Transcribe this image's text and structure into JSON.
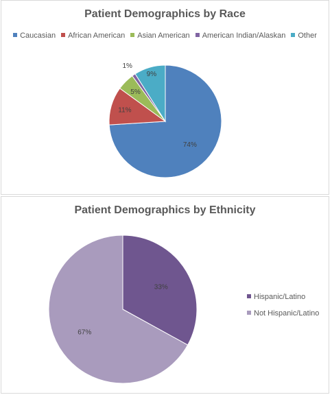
{
  "chart_data": [
    {
      "type": "pie",
      "title": "Patient Demographics by Race",
      "categories": [
        "Caucasian",
        "African American",
        "Asian American",
        "American Indian/Alaskan",
        "Other"
      ],
      "values": [
        74,
        11,
        5,
        1,
        9
      ],
      "labels": [
        "74%",
        "11%",
        "5%",
        "1%",
        "9%"
      ],
      "colors": [
        "#4f81bd",
        "#c0504d",
        "#9bbb59",
        "#8064a2",
        "#4bacc6"
      ],
      "legend": "top"
    },
    {
      "type": "pie",
      "title": "Patient Demographics by Ethnicity",
      "categories": [
        "Hispanic/Latino",
        "Not Hispanic/Latino"
      ],
      "values": [
        33,
        67
      ],
      "labels": [
        "33%",
        "67%"
      ],
      "colors": [
        "#6f568f",
        "#a99bbd"
      ],
      "legend": "right"
    }
  ]
}
